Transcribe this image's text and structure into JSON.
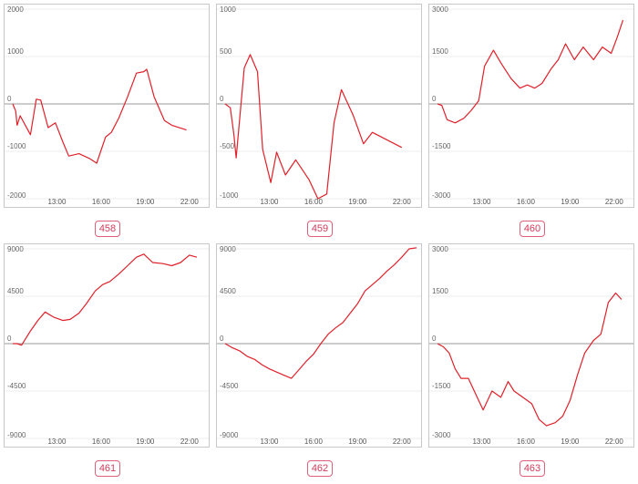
{
  "chart_data": [
    {
      "type": "line",
      "id_label": "458",
      "ylim": [
        -2000,
        2000
      ],
      "y_ticks": [
        {
          "v": 2000,
          "label": "2000"
        },
        {
          "v": 1000,
          "label": "1000"
        },
        {
          "v": 0,
          "label": "0"
        },
        {
          "v": -1000,
          "label": "-1000"
        },
        {
          "v": -2000,
          "label": "-2000"
        }
      ],
      "x_ticks": [
        "13:00",
        "16:00",
        "19:00",
        "22:00"
      ],
      "x": [
        10.0,
        10.2,
        10.3,
        10.5,
        11.2,
        11.6,
        11.9,
        12.4,
        12.9,
        13.4,
        13.8,
        14.5,
        15.2,
        15.7,
        16.3,
        16.7,
        17.2,
        17.8,
        18.4,
        18.9,
        19.1,
        19.6,
        20.3,
        20.8,
        21.8
      ],
      "values": [
        0,
        -150,
        -450,
        -250,
        -650,
        100,
        80,
        -500,
        -400,
        -800,
        -1100,
        -1050,
        -1150,
        -1250,
        -700,
        -600,
        -300,
        150,
        650,
        680,
        730,
        150,
        -350,
        -450,
        -550
      ]
    },
    {
      "type": "line",
      "id_label": "459",
      "ylim": [
        -1000,
        1000
      ],
      "y_ticks": [
        {
          "v": 1000,
          "label": "1000"
        },
        {
          "v": 500,
          "label": "500"
        },
        {
          "v": 0,
          "label": "0"
        },
        {
          "v": -500,
          "label": "-500"
        },
        {
          "v": -1000,
          "label": "-1000"
        }
      ],
      "x_ticks": [
        "13:00",
        "16:00",
        "19:00",
        "22:00"
      ],
      "x": [
        10.0,
        10.35,
        10.6,
        10.75,
        11.3,
        11.7,
        12.2,
        12.55,
        13.1,
        13.5,
        14.1,
        14.8,
        15.7,
        16.3,
        16.9,
        17.4,
        17.9,
        18.7,
        19.4,
        20.0,
        22.0
      ],
      "values": [
        0,
        -40,
        -330,
        -570,
        380,
        520,
        340,
        -480,
        -830,
        -510,
        -750,
        -590,
        -800,
        -1000,
        -950,
        -200,
        150,
        -120,
        -420,
        -300,
        -460
      ]
    },
    {
      "type": "line",
      "id_label": "460",
      "ylim": [
        -3000,
        3000
      ],
      "y_ticks": [
        {
          "v": 3000,
          "label": "3000"
        },
        {
          "v": 1500,
          "label": "1500"
        },
        {
          "v": 0,
          "label": "0"
        },
        {
          "v": -1500,
          "label": "-1500"
        },
        {
          "v": -3000,
          "label": "-3000"
        }
      ],
      "x_ticks": [
        "13:00",
        "16:00",
        "19:00",
        "22:00"
      ],
      "x": [
        10.0,
        10.3,
        10.65,
        11.2,
        11.8,
        12.3,
        12.8,
        13.2,
        13.8,
        14.3,
        15.0,
        15.6,
        16.1,
        16.6,
        17.1,
        17.7,
        18.2,
        18.7,
        19.3,
        19.9,
        20.6,
        21.2,
        21.8,
        22.2,
        22.6
      ],
      "values": [
        0,
        -50,
        -500,
        -600,
        -450,
        -200,
        100,
        1200,
        1700,
        1300,
        800,
        500,
        600,
        500,
        650,
        1100,
        1400,
        1900,
        1400,
        1800,
        1400,
        1800,
        1600,
        2100,
        2650
      ]
    },
    {
      "type": "line",
      "id_label": "461",
      "ylim": [
        -9000,
        9000
      ],
      "y_ticks": [
        {
          "v": 9000,
          "label": "9000"
        },
        {
          "v": 4500,
          "label": "4500"
        },
        {
          "v": 0,
          "label": "0"
        },
        {
          "v": -4500,
          "label": "-4500"
        },
        {
          "v": -9000,
          "label": "-9000"
        }
      ],
      "x_ticks": [
        "13:00",
        "16:00",
        "19:00",
        "22:00"
      ],
      "x": [
        10.0,
        10.3,
        10.6,
        11.2,
        11.7,
        12.2,
        12.8,
        13.4,
        13.9,
        14.5,
        15.0,
        15.6,
        16.1,
        16.6,
        17.2,
        17.8,
        18.4,
        18.9,
        19.5,
        20.2,
        20.8,
        21.4,
        22.0,
        22.5
      ],
      "values": [
        0,
        0,
        -150,
        1200,
        2200,
        3000,
        2500,
        2200,
        2300,
        2900,
        3800,
        5000,
        5600,
        5900,
        6600,
        7400,
        8200,
        8500,
        7700,
        7600,
        7400,
        7700,
        8400,
        8200
      ]
    },
    {
      "type": "line",
      "id_label": "462",
      "ylim": [
        -9000,
        9000
      ],
      "y_ticks": [
        {
          "v": 9000,
          "label": "9000"
        },
        {
          "v": 4500,
          "label": "4500"
        },
        {
          "v": 0,
          "label": "0"
        },
        {
          "v": -4500,
          "label": "-4500"
        },
        {
          "v": -9000,
          "label": "-9000"
        }
      ],
      "x_ticks": [
        "13:00",
        "16:00",
        "19:00",
        "22:00"
      ],
      "x": [
        10.0,
        10.5,
        11.0,
        11.5,
        12.0,
        12.5,
        13.0,
        13.5,
        14.0,
        14.5,
        15.0,
        15.5,
        16.0,
        16.5,
        17.0,
        17.5,
        18.0,
        18.5,
        19.0,
        19.5,
        20.0,
        20.5,
        21.0,
        21.5,
        22.0,
        22.5,
        23.0
      ],
      "values": [
        0,
        -400,
        -700,
        -1200,
        -1500,
        -2000,
        -2400,
        -2700,
        -3000,
        -3300,
        -2500,
        -1700,
        -1000,
        0,
        900,
        1500,
        2000,
        2900,
        3800,
        5000,
        5600,
        6200,
        6900,
        7500,
        8200,
        9000,
        9100
      ]
    },
    {
      "type": "line",
      "id_label": "463",
      "ylim": [
        -3000,
        3000
      ],
      "y_ticks": [
        {
          "v": 3000,
          "label": "3000"
        },
        {
          "v": 1500,
          "label": "1500"
        },
        {
          "v": 0,
          "label": "0"
        },
        {
          "v": -1500,
          "label": "-1500"
        },
        {
          "v": -3000,
          "label": "-3000"
        }
      ],
      "x_ticks": [
        "13:00",
        "16:00",
        "19:00",
        "22:00"
      ],
      "x": [
        10.0,
        10.4,
        10.8,
        11.2,
        11.6,
        12.1,
        12.6,
        13.1,
        13.7,
        14.3,
        14.8,
        15.2,
        15.8,
        16.4,
        16.9,
        17.4,
        18.0,
        18.5,
        19.0,
        19.5,
        20.0,
        20.6,
        21.1,
        21.6,
        22.1,
        22.5
      ],
      "values": [
        0,
        -100,
        -300,
        -800,
        -1100,
        -1100,
        -1600,
        -2100,
        -1500,
        -1700,
        -1200,
        -1500,
        -1700,
        -1900,
        -2400,
        -2600,
        -2500,
        -2300,
        -1800,
        -1000,
        -300,
        100,
        300,
        1300,
        1600,
        1400
      ]
    }
  ]
}
